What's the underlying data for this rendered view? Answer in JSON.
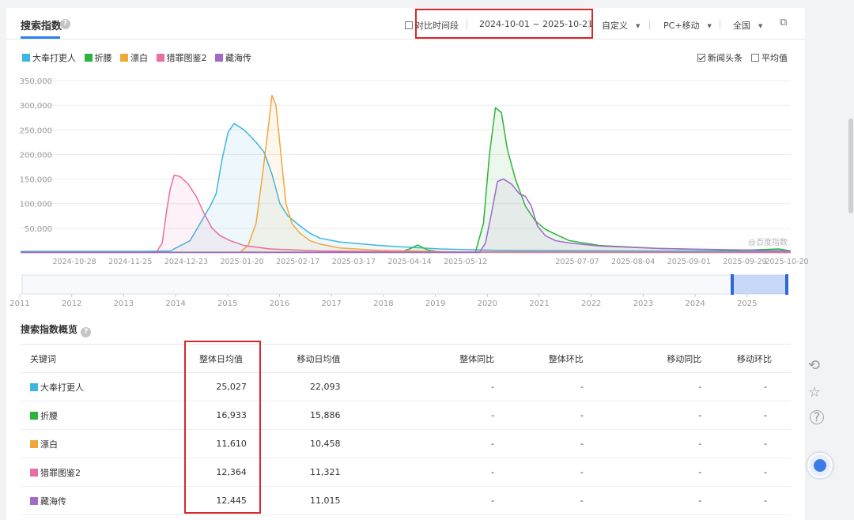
{
  "header": {
    "title": "搜索指数",
    "compare_label": "对比时间段",
    "date_range": "2024-10-01 ~ 2025-10-21",
    "custom_label": "自定义",
    "device_label": "PC+移动",
    "region_label": "全国"
  },
  "legend": [
    {
      "label": "大奉打更人",
      "color": "#3eb6e0"
    },
    {
      "label": "折腰",
      "color": "#2eb33c"
    },
    {
      "label": "漂白",
      "color": "#f1a83a"
    },
    {
      "label": "猎罪图鉴2",
      "color": "#e76fa1"
    },
    {
      "label": "藏海传",
      "color": "#a06ac8"
    }
  ],
  "options": {
    "news_label": "新闻头条",
    "avg_label": "平均值"
  },
  "watermark": "@百度指数",
  "chart_data": {
    "type": "area",
    "y_ticks": [
      "350,000",
      "300,000",
      "250,000",
      "200,000",
      "150,000",
      "100,000",
      "50,000"
    ],
    "ylim": [
      0,
      350000
    ],
    "x_ticks": [
      "2024-10-28",
      "2024-11-25",
      "2024-12-23",
      "2025-01-20",
      "2025-02-17",
      "2025-03-17",
      "2025-04-14",
      "2025-05-12",
      "2025-07-07",
      "2025-08-04",
      "2025-09-01",
      "2025-09-29",
      "2025-10-20"
    ],
    "x_days": [
      27,
      55,
      83,
      111,
      139,
      167,
      195,
      223,
      279,
      307,
      335,
      363,
      384
    ],
    "total_days": 386,
    "series": [
      {
        "name": "大奉打更人",
        "color": "#3eb6e0",
        "points": [
          [
            0,
            3000
          ],
          [
            60,
            3000
          ],
          [
            75,
            4000
          ],
          [
            85,
            25000
          ],
          [
            90,
            60000
          ],
          [
            95,
            95000
          ],
          [
            98,
            120000
          ],
          [
            101,
            190000
          ],
          [
            104,
            245000
          ],
          [
            107,
            263000
          ],
          [
            112,
            250000
          ],
          [
            118,
            225000
          ],
          [
            122,
            205000
          ],
          [
            126,
            160000
          ],
          [
            130,
            100000
          ],
          [
            134,
            75000
          ],
          [
            140,
            55000
          ],
          [
            145,
            40000
          ],
          [
            150,
            30000
          ],
          [
            160,
            22000
          ],
          [
            180,
            15000
          ],
          [
            210,
            8000
          ],
          [
            240,
            5000
          ],
          [
            300,
            4000
          ],
          [
            386,
            3000
          ]
        ]
      },
      {
        "name": "折腰",
        "color": "#2eb33c",
        "points": [
          [
            0,
            1500
          ],
          [
            190,
            1500
          ],
          [
            195,
            8000
          ],
          [
            199,
            16000
          ],
          [
            204,
            6000
          ],
          [
            210,
            2000
          ],
          [
            228,
            2000
          ],
          [
            232,
            60000
          ],
          [
            235,
            200000
          ],
          [
            238,
            295000
          ],
          [
            241,
            285000
          ],
          [
            244,
            210000
          ],
          [
            248,
            150000
          ],
          [
            253,
            95000
          ],
          [
            258,
            65000
          ],
          [
            263,
            48000
          ],
          [
            268,
            38000
          ],
          [
            275,
            25000
          ],
          [
            290,
            15000
          ],
          [
            320,
            9000
          ],
          [
            360,
            5000
          ],
          [
            380,
            8000
          ],
          [
            386,
            4000
          ]
        ]
      },
      {
        "name": "漂白",
        "color": "#f1a83a",
        "points": [
          [
            0,
            1000
          ],
          [
            110,
            1000
          ],
          [
            114,
            15000
          ],
          [
            118,
            60000
          ],
          [
            121,
            150000
          ],
          [
            124,
            250000
          ],
          [
            126,
            320000
          ],
          [
            128,
            300000
          ],
          [
            130,
            220000
          ],
          [
            133,
            100000
          ],
          [
            136,
            60000
          ],
          [
            140,
            40000
          ],
          [
            145,
            25000
          ],
          [
            150,
            18000
          ],
          [
            160,
            10000
          ],
          [
            180,
            5000
          ],
          [
            220,
            2000
          ],
          [
            386,
            1000
          ]
        ]
      },
      {
        "name": "猎罪图鉴2",
        "color": "#e76fa1",
        "points": [
          [
            0,
            1000
          ],
          [
            68,
            1000
          ],
          [
            71,
            20000
          ],
          [
            73,
            80000
          ],
          [
            75,
            130000
          ],
          [
            77,
            158000
          ],
          [
            80,
            155000
          ],
          [
            84,
            140000
          ],
          [
            88,
            115000
          ],
          [
            92,
            80000
          ],
          [
            96,
            50000
          ],
          [
            100,
            35000
          ],
          [
            105,
            25000
          ],
          [
            112,
            15000
          ],
          [
            125,
            8000
          ],
          [
            150,
            4000
          ],
          [
            200,
            2000
          ],
          [
            386,
            1000
          ]
        ]
      },
      {
        "name": "藏海传",
        "color": "#a06ac8",
        "points": [
          [
            0,
            1000
          ],
          [
            230,
            1000
          ],
          [
            233,
            20000
          ],
          [
            236,
            80000
          ],
          [
            239,
            145000
          ],
          [
            242,
            150000
          ],
          [
            246,
            140000
          ],
          [
            250,
            120000
          ],
          [
            253,
            115000
          ],
          [
            256,
            95000
          ],
          [
            259,
            55000
          ],
          [
            263,
            35000
          ],
          [
            268,
            25000
          ],
          [
            275,
            20000
          ],
          [
            290,
            14000
          ],
          [
            320,
            9000
          ],
          [
            360,
            6000
          ],
          [
            386,
            4000
          ]
        ]
      }
    ]
  },
  "timeline": {
    "years": [
      "2011",
      "2012",
      "2013",
      "2014",
      "2015",
      "2016",
      "2017",
      "2018",
      "2019",
      "2020",
      "2021",
      "2022",
      "2023",
      "2024",
      "2025"
    ]
  },
  "overview": {
    "title": "搜索指数概览",
    "columns": [
      "关键词",
      "整体日均值",
      "移动日均值",
      "整体同比",
      "整体环比",
      "移动同比",
      "移动环比"
    ],
    "rows": [
      {
        "keyword": "大奉打更人",
        "color": "#3eb6e0",
        "overall": "25,027",
        "mobile": "22,093",
        "yoy": "-",
        "mom": "-",
        "m_yoy": "-",
        "m_mom": "-"
      },
      {
        "keyword": "折腰",
        "color": "#2eb33c",
        "overall": "16,933",
        "mobile": "15,886",
        "yoy": "-",
        "mom": "-",
        "m_yoy": "-",
        "m_mom": "-"
      },
      {
        "keyword": "漂白",
        "color": "#f1a83a",
        "overall": "11,610",
        "mobile": "10,458",
        "yoy": "-",
        "mom": "-",
        "m_yoy": "-",
        "m_mom": "-"
      },
      {
        "keyword": "猎罪图鉴2",
        "color": "#e76fa1",
        "overall": "12,364",
        "mobile": "11,321",
        "yoy": "-",
        "mom": "-",
        "m_yoy": "-",
        "m_mom": "-"
      },
      {
        "keyword": "藏海传",
        "color": "#a06ac8",
        "overall": "12,445",
        "mobile": "11,015",
        "yoy": "-",
        "mom": "-",
        "m_yoy": "-",
        "m_mom": "-"
      }
    ]
  },
  "side_icons": [
    "share-icon",
    "star-icon",
    "help-icon",
    "assistant-icon"
  ]
}
